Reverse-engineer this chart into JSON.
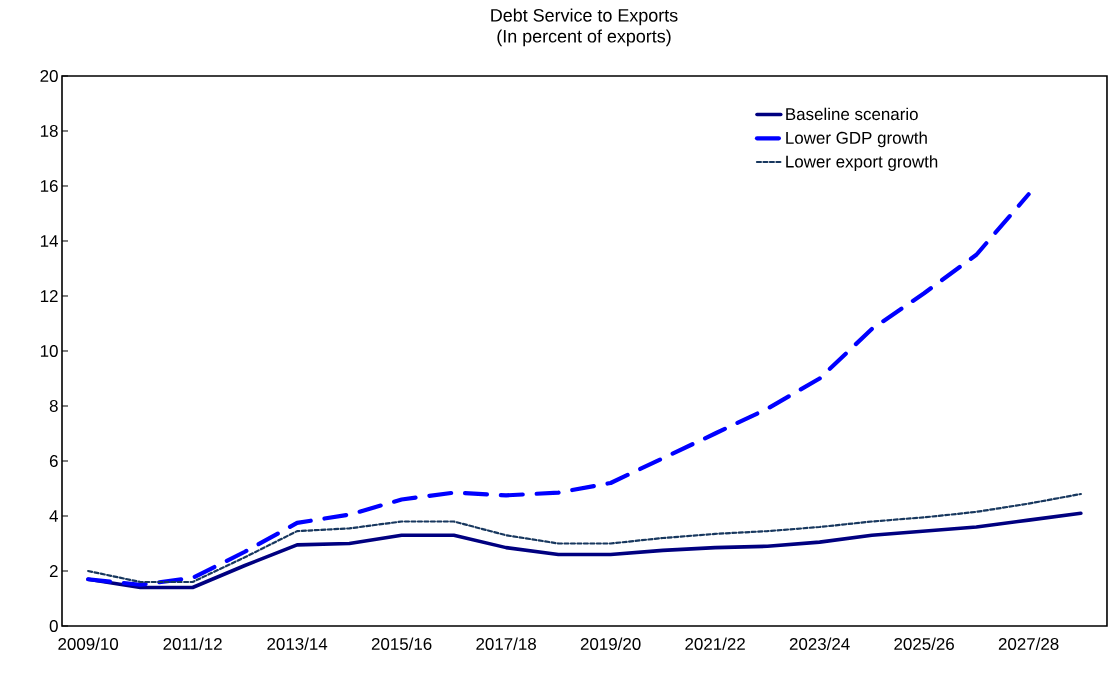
{
  "chart_data": {
    "type": "line",
    "title": "Debt Service to Exports",
    "subtitle": "(In percent of exports)",
    "categories": [
      "2009/10",
      null,
      "2011/12",
      null,
      "2013/14",
      null,
      "2015/16",
      null,
      "2017/18",
      null,
      "2019/20",
      null,
      "2021/22",
      null,
      "2023/24",
      null,
      "2025/26",
      null,
      "2027/28",
      null
    ],
    "series": [
      {
        "name": "Baseline scenario",
        "color": "#000080",
        "line_style": "solid",
        "values": [
          1.7,
          1.4,
          1.4,
          2.2,
          2.95,
          3.0,
          3.3,
          3.3,
          2.85,
          2.6,
          2.6,
          2.75,
          2.85,
          2.9,
          3.05,
          3.3,
          3.45,
          3.6,
          3.85,
          4.1
        ]
      },
      {
        "name": "Lower GDP growth",
        "color": "#0000ff",
        "line_style": "dashed",
        "values": [
          1.7,
          1.5,
          1.75,
          2.7,
          3.75,
          4.05,
          4.6,
          4.85,
          4.75,
          4.85,
          5.2,
          6.1,
          7.0,
          7.9,
          9.0,
          10.8,
          12.1,
          13.5,
          15.7,
          null
        ]
      },
      {
        "name": "Lower export growth",
        "color": "#17375e",
        "line_style": "dashed",
        "values": [
          2.0,
          1.6,
          1.6,
          2.5,
          3.45,
          3.55,
          3.8,
          3.8,
          3.3,
          3.0,
          3.0,
          3.2,
          3.35,
          3.45,
          3.6,
          3.8,
          3.95,
          4.15,
          4.45,
          4.8
        ]
      }
    ],
    "ylim": [
      0,
      20
    ],
    "yticks": [
      0,
      2,
      4,
      6,
      8,
      10,
      12,
      14,
      16,
      18,
      20
    ],
    "legend": "top right",
    "grid": false,
    "marker": "none"
  }
}
